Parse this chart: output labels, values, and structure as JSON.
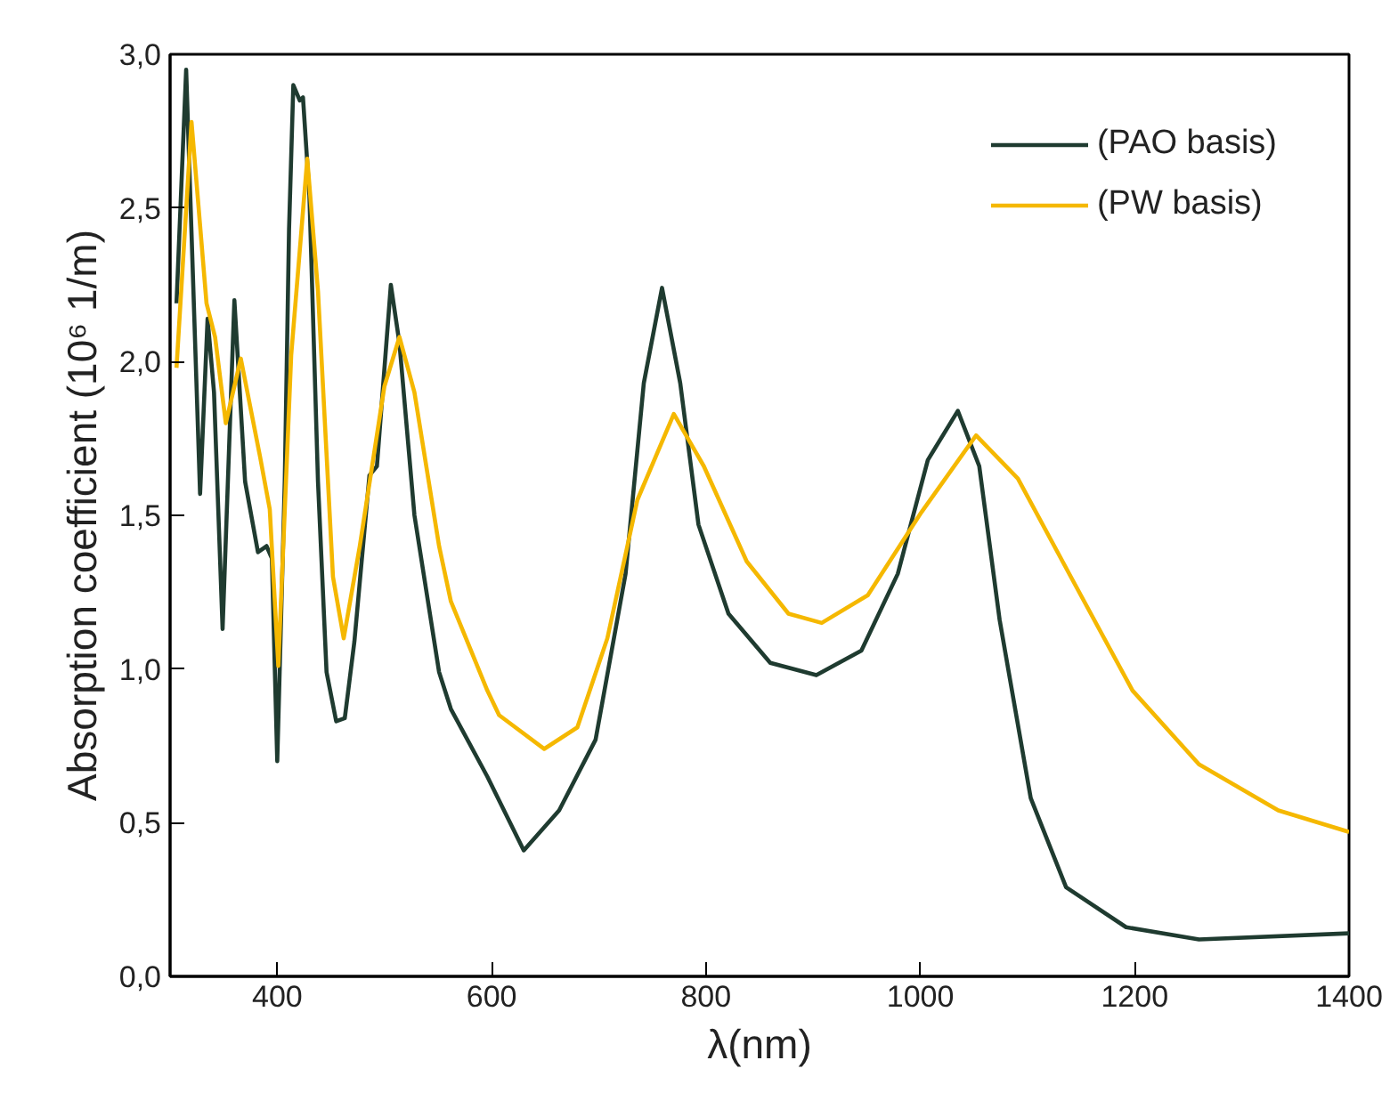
{
  "chart_data": {
    "type": "line",
    "xlabel": "λ(nm)",
    "ylabel": "Absorption coefficient (10⁶ 1/m)",
    "xlim": [
      300,
      1400
    ],
    "ylim": [
      0,
      3.0
    ],
    "xticks": [
      400,
      600,
      800,
      1000,
      1200,
      1400
    ],
    "yticks": [
      {
        "value": 0,
        "label": "0,0"
      },
      {
        "value": 0.5,
        "label": "0,5"
      },
      {
        "value": 1.0,
        "label": "1,0"
      },
      {
        "value": 1.5,
        "label": "1,5"
      },
      {
        "value": 2.0,
        "label": "2,0"
      },
      {
        "value": 2.5,
        "label": "2,5"
      },
      {
        "value": 3.0,
        "label": "3,0"
      }
    ],
    "grid": false,
    "legend": "top right",
    "marker": "none",
    "line_style": "solid",
    "series": [
      {
        "name": "(PAO basis)",
        "color": "#1f3b30",
        "x": [
          306,
          315,
          328,
          335,
          341,
          349,
          360,
          370,
          382,
          390,
          395,
          400,
          407,
          411,
          415,
          421,
          424,
          430,
          438,
          446,
          455,
          463,
          472,
          486,
          493,
          506,
          514,
          528,
          551,
          562,
          596,
          630,
          663,
          697,
          725,
          742,
          759,
          776,
          793,
          821,
          860,
          903,
          945,
          979,
          1007,
          1035,
          1055,
          1074,
          1103,
          1136,
          1192,
          1260,
          1400
        ],
        "values": [
          2.19,
          2.95,
          1.57,
          2.14,
          1.9,
          1.13,
          2.2,
          1.61,
          1.38,
          1.4,
          1.36,
          0.7,
          1.61,
          2.43,
          2.9,
          2.85,
          2.86,
          2.54,
          1.61,
          0.99,
          0.83,
          0.84,
          1.09,
          1.63,
          1.66,
          2.25,
          2.06,
          1.5,
          0.99,
          0.87,
          0.65,
          0.41,
          0.54,
          0.77,
          1.31,
          1.93,
          2.24,
          1.93,
          1.47,
          1.18,
          1.02,
          0.98,
          1.06,
          1.31,
          1.68,
          1.84,
          1.66,
          1.16,
          0.58,
          0.29,
          0.16,
          0.12,
          0.14
        ]
      },
      {
        "name": "(PW basis)",
        "color": "#f5b800",
        "x": [
          306,
          320,
          334,
          342,
          352,
          366,
          384,
          393,
          401,
          413,
          428,
          438,
          452,
          462,
          477,
          500,
          514,
          528,
          551,
          562,
          596,
          607,
          649,
          680,
          708,
          736,
          770,
          798,
          838,
          877,
          908,
          951,
          1001,
          1052,
          1091,
          1142,
          1198,
          1260,
          1334,
          1400
        ],
        "values": [
          1.98,
          2.78,
          2.19,
          2.08,
          1.8,
          2.01,
          1.69,
          1.52,
          1.01,
          2.02,
          2.66,
          2.23,
          1.3,
          1.1,
          1.4,
          1.92,
          2.08,
          1.9,
          1.4,
          1.22,
          0.93,
          0.85,
          0.74,
          0.81,
          1.1,
          1.55,
          1.83,
          1.66,
          1.35,
          1.18,
          1.15,
          1.24,
          1.51,
          1.76,
          1.62,
          1.29,
          0.93,
          0.69,
          0.54,
          0.47
        ]
      }
    ]
  }
}
